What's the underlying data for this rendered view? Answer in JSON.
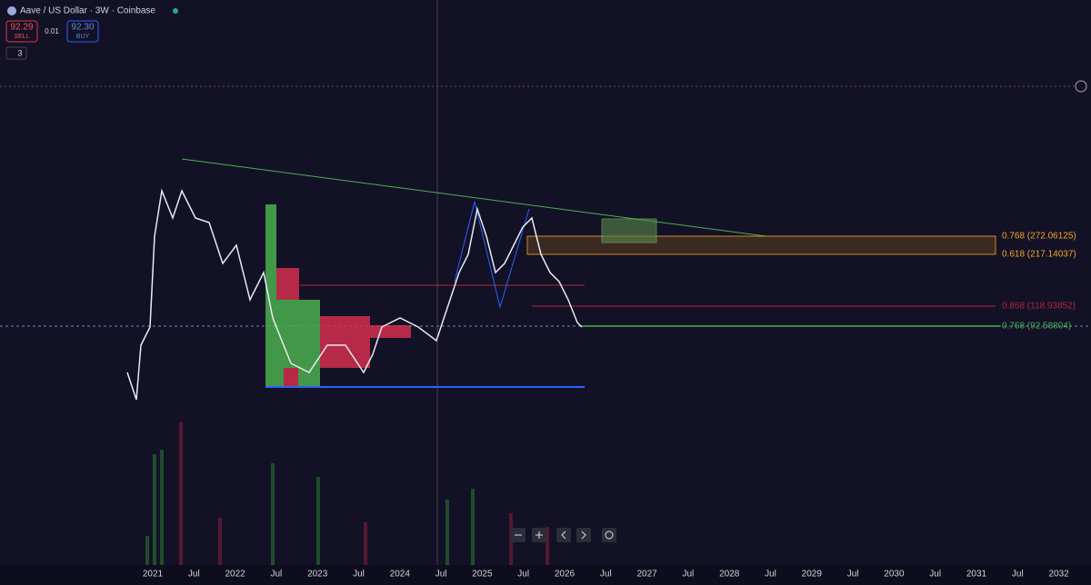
{
  "header": {
    "symbol": "Aave / US Dollar · 3W · Coinbase",
    "sell_price": "92.29",
    "sell_label": "SELL",
    "spread": "0.01",
    "buy_price": "92.30",
    "buy_label": "BUY",
    "indicators_count": "3"
  },
  "fib_levels": [
    "0.768 (272.06125)",
    "0.618 (217.14037)",
    "0.868 (118.93852)",
    "0.768 (92.58804)"
  ],
  "x_axis": [
    "2021",
    "Jul",
    "2022",
    "Jul",
    "2023",
    "Jul",
    "2024",
    "Jul",
    "2025",
    "Jul",
    "2026",
    "Jul",
    "2027",
    "Jul",
    "2028",
    "Jul",
    "2029",
    "Jul",
    "2030",
    "Jul",
    "2031",
    "Jul",
    "2032"
  ]
}
